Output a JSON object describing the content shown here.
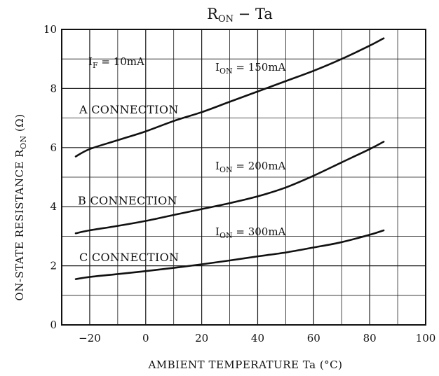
{
  "chart_data": {
    "type": "line",
    "title": {
      "main": "R",
      "sub": "ON",
      "rest": " − Ta"
    },
    "xlabel": "AMBIENT TEMPERATURE  Ta  (°C)",
    "ylabel": {
      "main": "ON-STATE RESISTANCE  R",
      "sub": "ON",
      "rest": "  (Ω)"
    },
    "xlim": [
      -30,
      100
    ],
    "ylim": [
      0,
      10
    ],
    "xticks": [
      {
        "value": -20,
        "label": "−20"
      },
      {
        "value": 0,
        "label": "0"
      },
      {
        "value": 20,
        "label": "20"
      },
      {
        "value": 40,
        "label": "40"
      },
      {
        "value": 60,
        "label": "60"
      },
      {
        "value": 80,
        "label": "80"
      },
      {
        "value": 100,
        "label": "100"
      }
    ],
    "yticks": [
      {
        "value": 0,
        "label": "0"
      },
      {
        "value": 2,
        "label": "2"
      },
      {
        "value": 4,
        "label": "4"
      },
      {
        "value": 6,
        "label": "6"
      },
      {
        "value": 8,
        "label": "8"
      },
      {
        "value": 10,
        "label": "10"
      }
    ],
    "grid": true,
    "condition": {
      "main": "I",
      "sub": "F",
      "rest": " = 10mA"
    },
    "series": [
      {
        "connection": "A CONNECTION",
        "current": {
          "main": "I",
          "sub": "ON",
          "rest": " = 150mA"
        },
        "x": [
          -25,
          -20,
          -10,
          0,
          10,
          20,
          30,
          40,
          50,
          60,
          70,
          80,
          85
        ],
        "y": [
          5.7,
          5.95,
          6.25,
          6.55,
          6.9,
          7.2,
          7.55,
          7.9,
          8.25,
          8.6,
          9.0,
          9.45,
          9.7
        ]
      },
      {
        "connection": "B CONNECTION",
        "current": {
          "main": "I",
          "sub": "ON",
          "rest": " = 200mA"
        },
        "x": [
          -25,
          -20,
          -10,
          0,
          10,
          20,
          30,
          40,
          50,
          60,
          70,
          80,
          85
        ],
        "y": [
          3.1,
          3.2,
          3.35,
          3.52,
          3.72,
          3.92,
          4.12,
          4.35,
          4.65,
          5.05,
          5.5,
          5.95,
          6.2
        ]
      },
      {
        "connection": "C CONNECTION",
        "current": {
          "main": "I",
          "sub": "ON",
          "rest": " = 300mA"
        },
        "x": [
          -25,
          -20,
          -10,
          0,
          10,
          20,
          30,
          40,
          50,
          60,
          70,
          80,
          85
        ],
        "y": [
          1.55,
          1.62,
          1.72,
          1.82,
          1.93,
          2.05,
          2.18,
          2.32,
          2.45,
          2.62,
          2.8,
          3.05,
          3.2
        ]
      }
    ]
  }
}
